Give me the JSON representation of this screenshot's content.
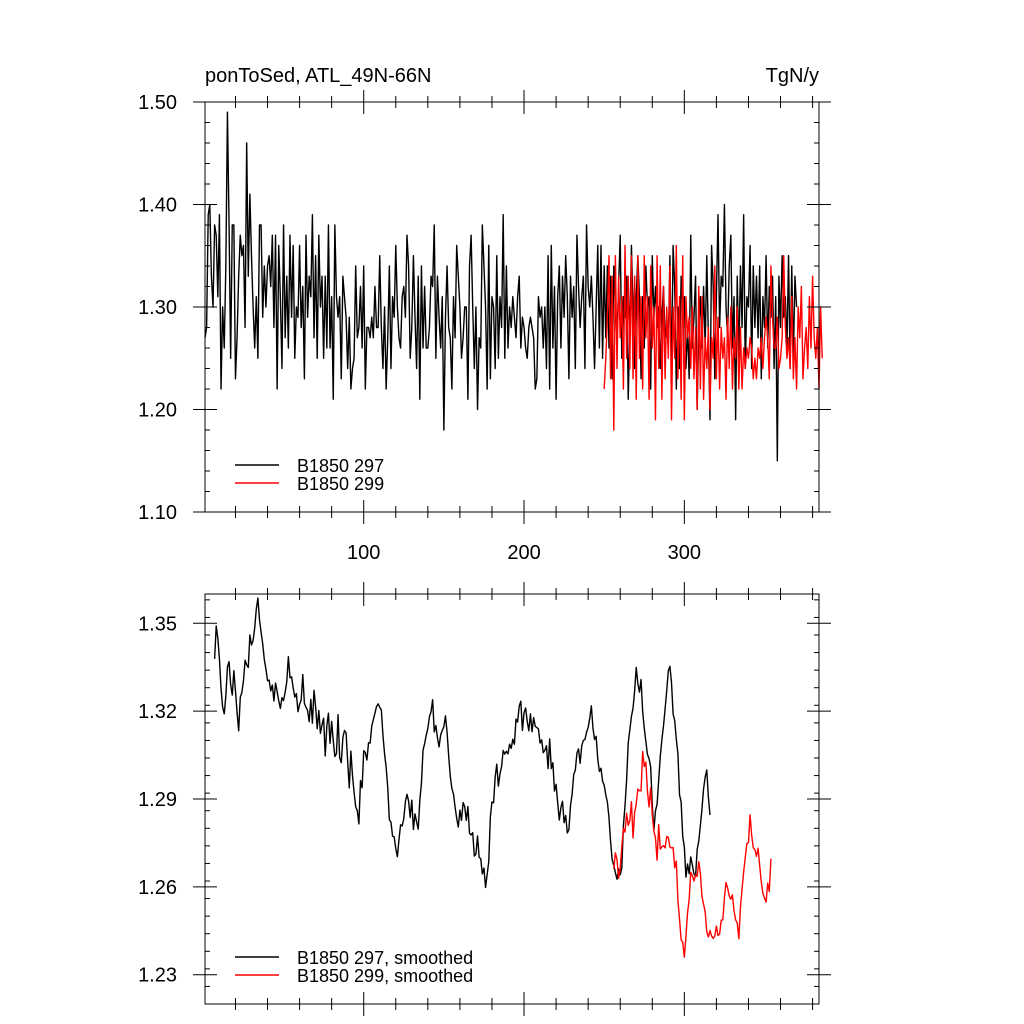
{
  "chart_data": [
    {
      "type": "line",
      "title": "ponToSed, ATL_49N-66N",
      "units": "TgN/y",
      "xlim": [
        1,
        384
      ],
      "ylim": [
        1.1,
        1.5
      ],
      "x_ticks": [
        100,
        200,
        300
      ],
      "x_tick_labels": [
        "100",
        "200",
        "300"
      ],
      "y_ticks": [
        1.1,
        1.2,
        1.3,
        1.4,
        1.5
      ],
      "y_tick_labels": [
        "1.10",
        "1.20",
        "1.30",
        "1.40",
        "1.50"
      ],
      "legend_position": "bottom-left",
      "series": [
        {
          "name": "B1850 297",
          "color": "#000000",
          "x_start": 1,
          "values": [
            1.27,
            1.28,
            1.39,
            1.4,
            1.33,
            1.3,
            1.38,
            1.37,
            1.31,
            1.39,
            1.22,
            1.3,
            1.26,
            1.34,
            1.49,
            1.38,
            1.25,
            1.38,
            1.38,
            1.23,
            1.27,
            1.33,
            1.37,
            1.35,
            1.36,
            1.28,
            1.46,
            1.33,
            1.41,
            1.35,
            1.3,
            1.26,
            1.31,
            1.25,
            1.38,
            1.38,
            1.29,
            1.34,
            1.3,
            1.34,
            1.35,
            1.32,
            1.37,
            1.28,
            1.37,
            1.22,
            1.36,
            1.31,
            1.24,
            1.38,
            1.27,
            1.33,
            1.26,
            1.37,
            1.29,
            1.36,
            1.25,
            1.3,
            1.29,
            1.36,
            1.28,
            1.32,
            1.23,
            1.37,
            1.29,
            1.33,
            1.31,
            1.39,
            1.27,
            1.35,
            1.25,
            1.37,
            1.3,
            1.33,
            1.25,
            1.33,
            1.26,
            1.38,
            1.26,
            1.31,
            1.21,
            1.38,
            1.31,
            1.29,
            1.31,
            1.23,
            1.33,
            1.31,
            1.29,
            1.24,
            1.29,
            1.22,
            1.24,
            1.25,
            1.34,
            1.27,
            1.28,
            1.32,
            1.26,
            1.34,
            1.22,
            1.28,
            1.28,
            1.27,
            1.29,
            1.27,
            1.32,
            1.28,
            1.28,
            1.35,
            1.28,
            1.24,
            1.3,
            1.22,
            1.27,
            1.34,
            1.24,
            1.31,
            1.29,
            1.36,
            1.3,
            1.27,
            1.26,
            1.31,
            1.32,
            1.29,
            1.37,
            1.34,
            1.25,
            1.28,
            1.35,
            1.29,
            1.24,
            1.33,
            1.21,
            1.34,
            1.26,
            1.32,
            1.26,
            1.26,
            1.28,
            1.33,
            1.32,
            1.38,
            1.25,
            1.33,
            1.29,
            1.26,
            1.31,
            1.18,
            1.29,
            1.34,
            1.28,
            1.27,
            1.22,
            1.31,
            1.27,
            1.36,
            1.33,
            1.3,
            1.25,
            1.27,
            1.3,
            1.3,
            1.21,
            1.34,
            1.37,
            1.3,
            1.24,
            1.3,
            1.2,
            1.27,
            1.26,
            1.38,
            1.34,
            1.3,
            1.22,
            1.36,
            1.23,
            1.31,
            1.3,
            1.24,
            1.35,
            1.25,
            1.31,
            1.28,
            1.39,
            1.25,
            1.34,
            1.26,
            1.3,
            1.28,
            1.31,
            1.29,
            1.27,
            1.31,
            1.33,
            1.26,
            1.29,
            1.28,
            1.26,
            1.25,
            1.28,
            1.29,
            1.28,
            1.27,
            1.22,
            1.23,
            1.31,
            1.29,
            1.3,
            1.26,
            1.3,
            1.24,
            1.35,
            1.22,
            1.36,
            1.26,
            1.32,
            1.21,
            1.31,
            1.34,
            1.26,
            1.33,
            1.29,
            1.35,
            1.31,
            1.23,
            1.33,
            1.29,
            1.32,
            1.24,
            1.37,
            1.32,
            1.28,
            1.31,
            1.33,
            1.24,
            1.38,
            1.32,
            1.3,
            1.33,
            1.29,
            1.24,
            1.3,
            1.36,
            1.26,
            1.36,
            1.25,
            1.34,
            1.27,
            1.34,
            1.26,
            1.33,
            1.23,
            1.34,
            1.3,
            1.27,
            1.32,
            1.37,
            1.25,
            1.31,
            1.29,
            1.33,
            1.21,
            1.28,
            1.36,
            1.3,
            1.24,
            1.31,
            1.35,
            1.31,
            1.23,
            1.31,
            1.26,
            1.34,
            1.3,
            1.31,
            1.22,
            1.35,
            1.29,
            1.32,
            1.28,
            1.3,
            1.24,
            1.29,
            1.32,
            1.27,
            1.28,
            1.26,
            1.35,
            1.23,
            1.36,
            1.32,
            1.22,
            1.3,
            1.24,
            1.33,
            1.3,
            1.31,
            1.24,
            1.28,
            1.23,
            1.37,
            1.26,
            1.29,
            1.33,
            1.2,
            1.28,
            1.31,
            1.26,
            1.32,
            1.26,
            1.35,
            1.27,
            1.19,
            1.36,
            1.32,
            1.23,
            1.31,
            1.39,
            1.28,
            1.33,
            1.32,
            1.4,
            1.3,
            1.27,
            1.34,
            1.37,
            1.26,
            1.31,
            1.19,
            1.33,
            1.25,
            1.34,
            1.28,
            1.39,
            1.24,
            1.31,
            1.3,
            1.36,
            1.24,
            1.34,
            1.28,
            1.33,
            1.27,
            1.34,
            1.23,
            1.31,
            1.28,
            1.35,
            1.26,
            1.32,
            1.29,
            1.33,
            1.24,
            1.31,
            1.15,
            1.33,
            1.28,
            1.35,
            1.29,
            1.31,
            1.26,
            1.35,
            1.24,
            1.34,
            1.25,
            1.33,
            1.3
          ]
        },
        {
          "name": "B1850 299",
          "color": "#ff0000",
          "x_start": 250,
          "values": [
            1.22,
            1.25,
            1.29,
            1.35,
            1.23,
            1.33,
            1.18,
            1.35,
            1.24,
            1.33,
            1.27,
            1.31,
            1.22,
            1.36,
            1.25,
            1.33,
            1.24,
            1.35,
            1.23,
            1.33,
            1.21,
            1.35,
            1.25,
            1.31,
            1.22,
            1.35,
            1.27,
            1.31,
            1.21,
            1.34,
            1.26,
            1.3,
            1.19,
            1.35,
            1.24,
            1.34,
            1.21,
            1.32,
            1.23,
            1.3,
            1.25,
            1.34,
            1.19,
            1.3,
            1.25,
            1.36,
            1.23,
            1.31,
            1.21,
            1.35,
            1.19,
            1.31,
            1.27,
            1.29,
            1.24,
            1.3,
            1.23,
            1.28,
            1.2,
            1.32,
            1.22,
            1.31,
            1.21,
            1.27,
            1.24,
            1.28,
            1.2,
            1.27,
            1.25,
            1.34,
            1.23,
            1.29,
            1.22,
            1.28,
            1.25,
            1.27,
            1.21,
            1.29,
            1.24,
            1.3,
            1.22,
            1.27,
            1.25,
            1.3,
            1.22,
            1.28,
            1.22,
            1.26,
            1.24,
            1.26,
            1.25,
            1.27,
            1.26,
            1.23,
            1.25,
            1.23,
            1.26,
            1.25,
            1.27,
            1.24,
            1.27,
            1.29,
            1.27,
            1.23,
            1.34,
            1.29,
            1.26,
            1.26,
            1.29,
            1.24,
            1.25,
            1.27,
            1.35,
            1.28,
            1.25,
            1.27,
            1.24,
            1.31,
            1.23,
            1.27,
            1.22,
            1.3,
            1.27,
            1.32,
            1.23,
            1.26,
            1.28,
            1.24,
            1.31,
            1.26,
            1.33,
            1.27,
            1.25,
            1.28,
            1.22,
            1.3,
            1.25
          ]
        }
      ]
    },
    {
      "type": "line",
      "title": "",
      "xlim": [
        1,
        384
      ],
      "ylim": [
        1.22,
        1.36
      ],
      "x_ticks": [
        100,
        200,
        300
      ],
      "y_ticks": [
        1.23,
        1.26,
        1.29,
        1.32,
        1.35
      ],
      "y_tick_labels": [
        "1.23",
        "1.26",
        "1.29",
        "1.32",
        "1.35"
      ],
      "legend_position": "bottom-left",
      "series": [
        {
          "name": "B1850 297, smoothed",
          "color": "#000000",
          "x_start": 7,
          "values": [
            1.3378,
            1.3491,
            1.3449,
            1.3378,
            1.3277,
            1.3214,
            1.3191,
            1.3252,
            1.3351,
            1.3369,
            1.3291,
            1.3255,
            1.3338,
            1.3269,
            1.3196,
            1.3133,
            1.3247,
            1.3264,
            1.3304,
            1.3374,
            1.3358,
            1.3349,
            1.346,
            1.3426,
            1.3441,
            1.3484,
            1.3549,
            1.3586,
            1.3511,
            1.3469,
            1.343,
            1.3376,
            1.3344,
            1.3304,
            1.3306,
            1.3269,
            1.3289,
            1.3235,
            1.3296,
            1.3267,
            1.3235,
            1.3209,
            1.3246,
            1.3236,
            1.3265,
            1.33,
            1.3386,
            1.3314,
            1.3317,
            1.328,
            1.3248,
            1.326,
            1.3198,
            1.3223,
            1.3238,
            1.3325,
            1.3227,
            1.3213,
            1.3202,
            1.3164,
            1.324,
            1.3159,
            1.3271,
            1.3214,
            1.314,
            1.3202,
            1.3124,
            1.3154,
            1.3176,
            1.3047,
            1.315,
            1.3193,
            1.309,
            1.3165,
            1.3099,
            1.3045,
            1.3055,
            1.3188,
            1.3041,
            1.3024,
            1.311,
            1.3134,
            1.3126,
            1.3028,
            1.2938,
            1.3063,
            1.298,
            1.2923,
            1.2873,
            1.286,
            1.2815,
            1.2963,
            1.2938,
            1.3065,
            1.3059,
            1.3033,
            1.3092,
            1.3091,
            1.3148,
            1.3171,
            1.3193,
            1.3216,
            1.3225,
            1.3213,
            1.3204,
            1.3118,
            1.3055,
            1.3008,
            1.2938,
            1.2829,
            1.2821,
            1.2773,
            1.2771,
            1.2731,
            1.2703,
            1.2761,
            1.2812,
            1.2808,
            1.2833,
            1.2891,
            1.2916,
            1.2893,
            1.2837,
            1.2896,
            1.2796,
            1.2849,
            1.2822,
            1.2797,
            1.2896,
            1.2953,
            1.3067,
            1.3089,
            1.3118,
            1.3141,
            1.3181,
            1.3198,
            1.3239,
            1.3129,
            1.3151,
            1.3109,
            1.3078,
            1.3119,
            1.3134,
            1.3147,
            1.3184,
            1.3128,
            1.3047,
            1.2978,
            1.2936,
            1.2917,
            1.2872,
            1.2834,
            1.2804,
            1.2862,
            1.2827,
            1.2888,
            1.2874,
            1.2827,
            1.2874,
            1.2783,
            1.2777,
            1.2785,
            1.2705,
            1.2712,
            1.2774,
            1.2701,
            1.2696,
            1.2644,
            1.2664,
            1.2598,
            1.2642,
            1.2686,
            1.2839,
            1.289,
            1.2887,
            1.2975,
            1.3019,
            1.2944,
            1.2986,
            1.3011,
            1.3066,
            1.3053,
            1.3063,
            1.3054,
            1.3087,
            1.3073,
            1.3104,
            1.3087,
            1.3173,
            1.3163,
            1.3217,
            1.3234,
            1.3134,
            1.3195,
            1.3211,
            1.3165,
            1.3133,
            1.3191,
            1.313,
            1.3178,
            1.3148,
            1.3144,
            1.3139,
            1.3091,
            1.3102,
            1.3058,
            1.3066,
            1.3082,
            1.3004,
            1.3105,
            1.3004,
            1.3024,
            1.2927,
            1.295,
            1.2887,
            1.2828,
            1.2871,
            1.2892,
            1.2819,
            1.2844,
            1.2784,
            1.2795,
            1.2878,
            1.2917,
            1.2984,
            1.2998,
            1.3057,
            1.3071,
            1.3022,
            1.3082,
            1.31,
            1.3103,
            1.3128,
            1.3144,
            1.3176,
            1.3218,
            1.3142,
            1.3103,
            1.3114,
            1.3036,
            1.2994,
            1.3005,
            1.2961,
            1.2947,
            1.2914,
            1.2889,
            1.2836,
            1.2754,
            1.2692,
            1.2674,
            1.2648,
            1.2626,
            1.2661,
            1.2641,
            1.2665,
            1.2809,
            1.2878,
            1.2965,
            1.3092,
            1.3136,
            1.3182,
            1.321,
            1.327,
            1.3349,
            1.3294,
            1.3265,
            1.3308,
            1.32,
            1.3142,
            1.3096,
            1.3052,
            1.3038,
            1.301,
            1.288,
            1.2793,
            1.286,
            1.2882,
            1.2964,
            1.3046,
            1.3103,
            1.315,
            1.3208,
            1.3269,
            1.3338,
            1.3353,
            1.3297,
            1.319,
            1.3168,
            1.3104,
            1.3054,
            1.2914,
            1.289,
            1.2772,
            1.2736,
            1.2633,
            1.2678,
            1.2645,
            1.2702,
            1.2675,
            1.2644,
            1.2636,
            1.2727,
            1.2756,
            1.281,
            1.2866,
            1.2935,
            1.2975,
            1.2999,
            1.2906,
            1.2845
          ]
        },
        {
          "name": "B1850 299, smoothed",
          "color": "#ff0000",
          "x_start": 256,
          "values": [
            1.2661,
            1.2716,
            1.2693,
            1.2629,
            1.2662,
            1.2737,
            1.28,
            1.2787,
            1.2851,
            1.281,
            1.2827,
            1.2891,
            1.2767,
            1.2854,
            1.2883,
            1.2934,
            1.2928,
            1.2928,
            1.3062,
            1.3011,
            1.3026,
            1.2926,
            1.2873,
            1.2938,
            1.2847,
            1.279,
            1.2767,
            1.2691,
            1.2812,
            1.2729,
            1.2737,
            1.2741,
            1.2733,
            1.2772,
            1.2769,
            1.2736,
            1.2733,
            1.2734,
            1.2665,
            1.2688,
            1.2553,
            1.249,
            1.2419,
            1.2411,
            1.236,
            1.2432,
            1.2511,
            1.2557,
            1.265,
            1.2638,
            1.262,
            1.2641,
            1.2636,
            1.2686,
            1.2646,
            1.2567,
            1.2541,
            1.2514,
            1.2447,
            1.2429,
            1.2451,
            1.2432,
            1.2424,
            1.2432,
            1.2466,
            1.2434,
            1.2439,
            1.2486,
            1.2487,
            1.2562,
            1.2615,
            1.2596,
            1.2569,
            1.2558,
            1.2573,
            1.2518,
            1.2487,
            1.2477,
            1.2423,
            1.253,
            1.2592,
            1.2651,
            1.2701,
            1.2748,
            1.2751,
            1.2846,
            1.2776,
            1.2733,
            1.2728,
            1.2704,
            1.2732,
            1.2673,
            1.2617,
            1.2578,
            1.2562,
            1.2548,
            1.2613,
            1.2584,
            1.2696
          ]
        }
      ]
    }
  ]
}
